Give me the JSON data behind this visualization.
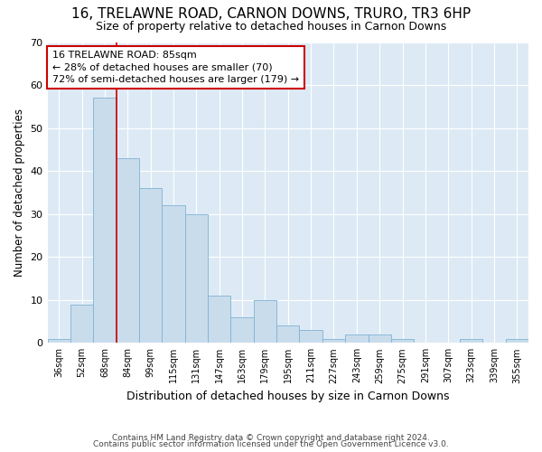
{
  "title": "16, TRELAWNE ROAD, CARNON DOWNS, TRURO, TR3 6HP",
  "subtitle": "Size of property relative to detached houses in Carnon Downs",
  "xlabel": "Distribution of detached houses by size in Carnon Downs",
  "ylabel": "Number of detached properties",
  "categories": [
    "36sqm",
    "52sqm",
    "68sqm",
    "84sqm",
    "99sqm",
    "115sqm",
    "131sqm",
    "147sqm",
    "163sqm",
    "179sqm",
    "195sqm",
    "211sqm",
    "227sqm",
    "243sqm",
    "259sqm",
    "275sqm",
    "291sqm",
    "307sqm",
    "323sqm",
    "339sqm",
    "355sqm"
  ],
  "values": [
    1,
    9,
    57,
    43,
    36,
    32,
    30,
    11,
    6,
    10,
    4,
    3,
    1,
    2,
    2,
    1,
    0,
    0,
    1,
    0,
    1
  ],
  "bar_color": "#c9dcec",
  "bar_edge_color": "#7fb3d3",
  "ylim": [
    0,
    70
  ],
  "yticks": [
    0,
    10,
    20,
    30,
    40,
    50,
    60,
    70
  ],
  "vline_x": 2.5,
  "vline_color": "#cc0000",
  "annotation_text": "16 TRELAWNE ROAD: 85sqm\n← 28% of detached houses are smaller (70)\n72% of semi-detached houses are larger (179) →",
  "annotation_box_color": "#ffffff",
  "annotation_box_edge": "#cc0000",
  "footer1": "Contains HM Land Registry data © Crown copyright and database right 2024.",
  "footer2": "Contains public sector information licensed under the Open Government Licence v3.0.",
  "plot_bg": "#ddeaf5"
}
